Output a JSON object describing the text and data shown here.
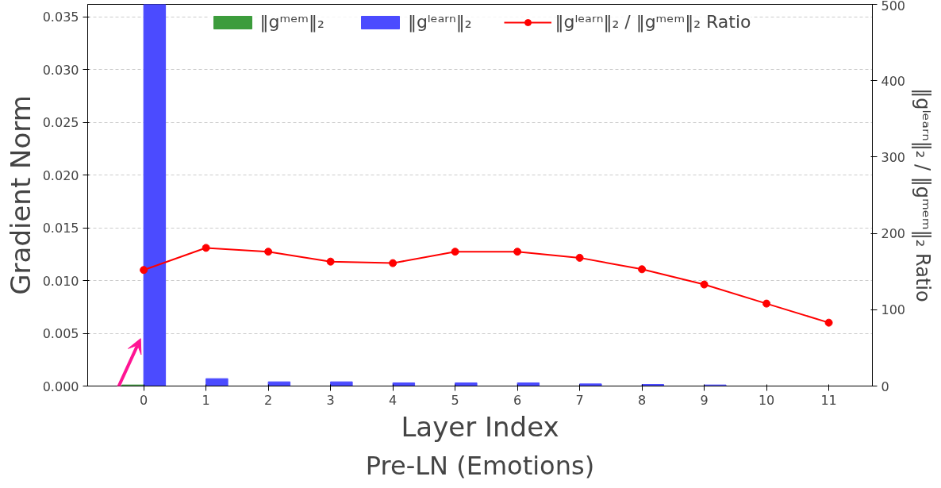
{
  "chart_data": {
    "type": "bar",
    "categories": [
      "0",
      "1",
      "2",
      "3",
      "4",
      "5",
      "6",
      "7",
      "8",
      "9",
      "10",
      "11"
    ],
    "xlabel": "Layer Index",
    "ylabel": "Gradient Norm",
    "y2label": "‖gˡᵉᵃʳⁿ‖₂ / ‖gᵐᵉᵐ‖₂ Ratio",
    "series": [
      {
        "name": "‖gᵐᵉᵐ‖₂",
        "color": "#3c9c3c",
        "values": [
          0.0001,
          0,
          0,
          0,
          0,
          0,
          0,
          0,
          0,
          0,
          0,
          0
        ]
      },
      {
        "name": "‖gˡᵉᵃʳⁿ‖₂",
        "color": "#4b4bff",
        "values": [
          0.0362,
          0.0007,
          0.0004,
          0.0004,
          0.0003,
          0.0003,
          0.0003,
          0.0002,
          0.00015,
          0.0001,
          0,
          0
        ]
      },
      {
        "name": "‖gˡᵉᵃʳⁿ‖₂ / ‖gᵐᵉᵐ‖₂ Ratio",
        "type": "line",
        "axis": "y2",
        "color": "#ff0000",
        "marker": "circle",
        "values": [
          152,
          181,
          176,
          163,
          161,
          176,
          176,
          168,
          153,
          133,
          108,
          83
        ]
      }
    ],
    "ylim": [
      0,
      0.0362
    ],
    "yticks": [
      {
        "value": 0,
        "label": "0.000"
      },
      {
        "value": 0.005,
        "label": "0.005"
      },
      {
        "value": 0.01,
        "label": "0.010"
      },
      {
        "value": 0.015,
        "label": "0.015"
      },
      {
        "value": 0.02,
        "label": "0.020"
      },
      {
        "value": 0.025,
        "label": "0.025"
      },
      {
        "value": 0.03,
        "label": "0.030"
      },
      {
        "value": 0.035,
        "label": "0.035"
      }
    ],
    "y2lim": [
      0,
      500
    ],
    "y2ticks": [
      0,
      100,
      200,
      300,
      400,
      500
    ],
    "grid": "y",
    "legend": "top",
    "annotations": [
      "Pre-LN (Emotions)"
    ]
  }
}
